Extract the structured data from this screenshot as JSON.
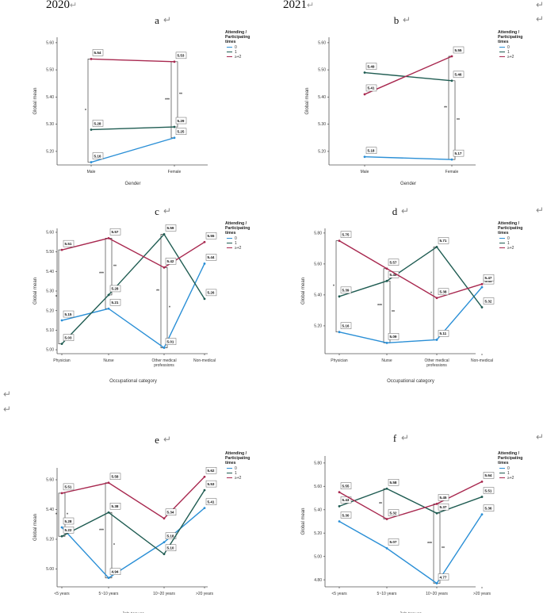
{
  "header": {
    "year_left": "2020",
    "year_right": "2021",
    "return_mark": "↵"
  },
  "colors": {
    "s0": "#2a8fd6",
    "s1": "#1f5c52",
    "s2": "#a8284f"
  },
  "legend": {
    "title_line1": "Attending /",
    "title_line2": "Participating",
    "title_line3": "times",
    "items": [
      "0",
      "1",
      "≥+2"
    ]
  },
  "chart_data": [
    {
      "id": "a",
      "type": "line",
      "title": "a",
      "xlabel": "Gender",
      "ylabel": "Global mean",
      "categories": [
        "Male",
        "Female"
      ],
      "ylim": [
        5.15,
        5.62
      ],
      "yticks": [
        "5.20",
        "5.30",
        "5.40",
        "5.50",
        "5.60"
      ],
      "series": [
        {
          "name": "0",
          "values": [
            5.16,
            5.25
          ],
          "labels": [
            "5.16",
            "5.25"
          ]
        },
        {
          "name": "1",
          "values": [
            5.28,
            5.29
          ],
          "labels": [
            "5.28",
            "5.29"
          ]
        },
        {
          "name": "≥+2",
          "values": [
            5.54,
            5.53
          ],
          "labels": [
            "5.54",
            "5.53"
          ]
        }
      ],
      "brackets": [
        {
          "cat": 0,
          "lo": 5.16,
          "hi": 5.54,
          "sig": "*",
          "side": "left"
        },
        {
          "cat": 1,
          "lo": 5.25,
          "hi": 5.53,
          "sig": "***",
          "side": "left"
        },
        {
          "cat": 1,
          "lo": 5.29,
          "hi": 5.53,
          "sig": "**",
          "side": "right"
        }
      ]
    },
    {
      "id": "b",
      "type": "line",
      "title": "b",
      "xlabel": "Gender",
      "ylabel": "Global mean",
      "categories": [
        "Male",
        "Female"
      ],
      "ylim": [
        5.15,
        5.62
      ],
      "yticks": [
        "5.20",
        "5.30",
        "5.40",
        "5.50",
        "5.60"
      ],
      "series": [
        {
          "name": "0",
          "values": [
            5.18,
            5.17
          ],
          "labels": [
            "5.18",
            "5.17"
          ]
        },
        {
          "name": "1",
          "values": [
            5.49,
            5.46
          ],
          "labels": [
            "5.49",
            "5.46"
          ]
        },
        {
          "name": "≥+2",
          "values": [
            5.41,
            5.55
          ],
          "labels": [
            "5.41",
            "5.55"
          ]
        }
      ],
      "brackets": [
        {
          "cat": 1,
          "lo": 5.17,
          "hi": 5.55,
          "sig": "**",
          "side": "left"
        },
        {
          "cat": 1,
          "lo": 5.17,
          "hi": 5.46,
          "sig": "**",
          "side": "right"
        }
      ]
    },
    {
      "id": "c",
      "type": "line",
      "title": "c",
      "xlabel": "Occupational category",
      "ylabel": "Global mean",
      "categories": [
        "Physician",
        "Nurse",
        "Other medical professions",
        "Non-medical"
      ],
      "ylim": [
        4.98,
        5.62
      ],
      "yticks": [
        "5.00",
        "5.10",
        "5.20",
        "5.30",
        "5.40",
        "5.50",
        "5.60"
      ],
      "series": [
        {
          "name": "0",
          "values": [
            5.15,
            5.21,
            5.01,
            5.44
          ],
          "labels": [
            "5.15",
            "5.21",
            "5.01",
            "5.44"
          ]
        },
        {
          "name": "1",
          "values": [
            5.03,
            5.28,
            5.59,
            5.26
          ],
          "labels": [
            "5.03",
            "5.28",
            "5.59",
            "5.26"
          ]
        },
        {
          "name": "≥+2",
          "values": [
            5.51,
            5.57,
            5.42,
            5.55
          ],
          "labels": [
            "5.51",
            "5.57",
            "5.42",
            "5.55"
          ]
        }
      ],
      "brackets": [
        {
          "cat": 0,
          "lo": 5.03,
          "hi": 5.51,
          "sig": "*",
          "side": "left"
        },
        {
          "cat": 1,
          "lo": 5.21,
          "hi": 5.57,
          "sig": "***",
          "side": "left"
        },
        {
          "cat": 1,
          "lo": 5.28,
          "hi": 5.57,
          "sig": "**",
          "side": "right"
        },
        {
          "cat": 2,
          "lo": 5.01,
          "hi": 5.59,
          "sig": "**",
          "side": "left"
        },
        {
          "cat": 2,
          "lo": 5.01,
          "hi": 5.42,
          "sig": "*",
          "side": "right"
        }
      ]
    },
    {
      "id": "d",
      "type": "line",
      "title": "d",
      "xlabel": "Occupational category",
      "ylabel": "Global mean",
      "categories": [
        "Physician",
        "Nurse",
        "Other medical professions",
        "Non-medical"
      ],
      "ylim": [
        5.02,
        5.83
      ],
      "yticks": [
        "5.20",
        "5.40",
        "5.60",
        "5.80"
      ],
      "series": [
        {
          "name": "0",
          "values": [
            5.16,
            5.09,
            5.11,
            5.45
          ],
          "labels": [
            "5.16",
            "5.09",
            "5.11",
            "5.45"
          ]
        },
        {
          "name": "1",
          "values": [
            5.39,
            5.49,
            5.71,
            5.32
          ],
          "labels": [
            "5.39",
            "5.49",
            "5.71",
            "5.32"
          ]
        },
        {
          "name": "≥+2",
          "values": [
            5.75,
            5.57,
            5.38,
            5.47
          ],
          "labels": [
            "5.75",
            "5.57",
            "5.38",
            "5.47"
          ]
        }
      ],
      "brackets": [
        {
          "cat": 0,
          "lo": 5.16,
          "hi": 5.75,
          "sig": "*",
          "side": "left"
        },
        {
          "cat": 1,
          "lo": 5.09,
          "hi": 5.57,
          "sig": "***",
          "side": "left"
        },
        {
          "cat": 1,
          "lo": 5.09,
          "hi": 5.49,
          "sig": "**",
          "side": "right"
        },
        {
          "cat": 2,
          "lo": 5.11,
          "hi": 5.71,
          "sig": "*",
          "side": "left"
        }
      ]
    },
    {
      "id": "e",
      "type": "line",
      "title": "e",
      "xlabel": "Job tenure",
      "ylabel": "Global mean",
      "categories": [
        "<5 years",
        "5~10 years",
        "10~20 years",
        ">20 years"
      ],
      "ylim": [
        4.88,
        5.68
      ],
      "yticks": [
        "5.00",
        "5.20",
        "5.40",
        "5.60"
      ],
      "series": [
        {
          "name": "0",
          "values": [
            5.28,
            4.94,
            5.18,
            5.41
          ],
          "labels": [
            "5.28",
            "4.94",
            "5.18",
            "5.41"
          ]
        },
        {
          "name": "1",
          "values": [
            5.22,
            5.38,
            5.1,
            5.53
          ],
          "labels": [
            "5.22",
            "5.38",
            "5.10",
            "5.53"
          ]
        },
        {
          "name": "≥+2",
          "values": [
            5.51,
            5.58,
            5.34,
            5.62
          ],
          "labels": [
            "5.51",
            "5.58",
            "5.34",
            "5.62"
          ]
        }
      ],
      "brackets": [
        {
          "cat": 0,
          "lo": 5.22,
          "hi": 5.51,
          "sig": "*",
          "side": "left"
        },
        {
          "cat": 0,
          "lo": 5.22,
          "hi": 5.51,
          "sig": "*",
          "side": "right"
        },
        {
          "cat": 1,
          "lo": 4.94,
          "hi": 5.58,
          "sig": "***",
          "side": "left"
        },
        {
          "cat": 1,
          "lo": 4.94,
          "hi": 5.38,
          "sig": "*",
          "side": "right"
        }
      ]
    },
    {
      "id": "f",
      "type": "line",
      "title": "f",
      "xlabel": "Job tenure",
      "ylabel": "Global mean",
      "categories": [
        "<5 years",
        "5~10 years",
        "10~20 years",
        ">20 years"
      ],
      "ylim": [
        4.74,
        5.86
      ],
      "yticks": [
        "4.80",
        "5.00",
        "5.20",
        "5.40",
        "5.60",
        "5.80"
      ],
      "series": [
        {
          "name": "0",
          "values": [
            5.3,
            5.07,
            4.77,
            5.36
          ],
          "labels": [
            "5.30",
            "5.07",
            "4.77",
            "5.36"
          ]
        },
        {
          "name": "1",
          "values": [
            5.43,
            5.58,
            5.37,
            5.51
          ],
          "labels": [
            "5.43",
            "5.58",
            "5.37",
            "5.51"
          ]
        },
        {
          "name": "≥+2",
          "values": [
            5.55,
            5.32,
            5.45,
            5.64
          ],
          "labels": [
            "5.55",
            "5.32",
            "5.45",
            "5.64"
          ]
        }
      ],
      "brackets": [
        {
          "cat": 1,
          "lo": 5.32,
          "hi": 5.58,
          "sig": "**",
          "side": "left"
        },
        {
          "cat": 2,
          "lo": 4.77,
          "hi": 5.45,
          "sig": "***",
          "side": "left"
        },
        {
          "cat": 2,
          "lo": 4.77,
          "hi": 5.37,
          "sig": "**",
          "side": "right"
        }
      ]
    }
  ]
}
